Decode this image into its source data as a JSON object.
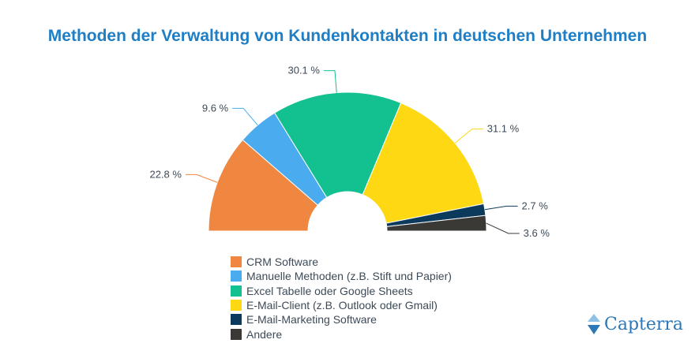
{
  "chart_data": {
    "type": "pie",
    "variant": "semi-donut",
    "title": "Methoden der Verwaltung von Kundenkontakten in deutschen Unternehmen",
    "categories": [
      "CRM Software",
      "Manuelle Methoden (z.B. Stift und Papier)",
      "Excel Tabelle oder Google Sheets",
      "E-Mail-Client (z.B. Outlook oder Gmail)",
      "E-Mail-Marketing Software",
      "Andere"
    ],
    "values": [
      22.8,
      9.6,
      30.1,
      31.1,
      2.7,
      3.6
    ],
    "labels": [
      "22.8 %",
      "9.6 %",
      "30.1 %",
      "31.1 %",
      "2.7 %",
      "3.6 %"
    ],
    "colors": [
      "#ef8741",
      "#4aabef",
      "#13c08f",
      "#fed813",
      "#0b3a5c",
      "#3a3936"
    ],
    "legend_position": "bottom"
  },
  "brand": {
    "name": "Capterra"
  }
}
